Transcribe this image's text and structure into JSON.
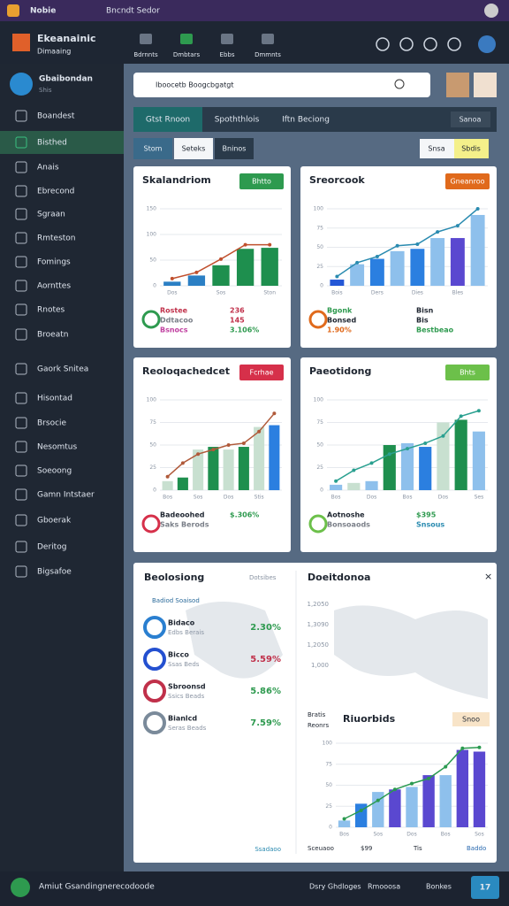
{
  "status_bar": {
    "app": "Nobie",
    "url": "Bncndt Sedor"
  },
  "header": {
    "brand": "Ekeanainic",
    "brand_sub": "Dimaaing",
    "tabs": [
      "Bdrnnts",
      "Dmbtars",
      "Ebbs",
      "Dmmnts"
    ]
  },
  "sidebar": {
    "profile_name": "Gbaibondan",
    "profile_sub": "Shis",
    "items": [
      "Boandest",
      "Bisthed",
      "Anais",
      "Ebrecond",
      "Sgraan",
      "Rmteston",
      "Fomings",
      "Aornttes",
      "Rnotes",
      "Broeatn",
      "Gaork Snitea",
      "Hisontad",
      "Brsocie",
      "Nesomtus",
      "Soeoong",
      "Gamn Intstaer",
      "Gboerak",
      "Deritog",
      "Bigsafoe"
    ],
    "selected": 1
  },
  "search": {
    "placeholder": "Iboocetb Boogcbgatgt"
  },
  "view_tabs": {
    "items": [
      "Gtst Rnoon",
      "Spoththlois",
      "Iftn Beciong"
    ],
    "right": "Sanoa"
  },
  "chips": {
    "items": [
      "Stom",
      "Seteks",
      "Bninos"
    ],
    "right": [
      "Snsa",
      "Sbdis"
    ]
  },
  "panels": [
    {
      "title": "Skalandriom",
      "badge": "Bhtto",
      "badge_color": "#2e9a4f",
      "chart": {
        "ylim": [
          0,
          150
        ],
        "yticks": [
          0,
          50,
          100,
          150
        ],
        "categories": [
          "Dos",
          null,
          "Sos",
          null,
          "Ston"
        ],
        "values": [
          8,
          20,
          40,
          72,
          74
        ],
        "colors": [
          "#2b7fc4",
          "#2b7fc4",
          "#1e8f4e",
          "#1e8f4e",
          "#1e8f4e"
        ],
        "line": [
          14,
          26,
          52,
          80,
          80
        ],
        "line_color": "#c0502e"
      },
      "stats": [
        {
          "text": "Rostee",
          "color": "#c0304a"
        },
        {
          "text": "236",
          "color": "#c0304a"
        },
        {
          "text": "Ddtacoo",
          "color": "#7a7f88"
        },
        {
          "text": "145",
          "color": "#c0304a"
        },
        {
          "text": "Bsnocs",
          "color": "#c040a0"
        },
        {
          "text": "3.106%",
          "color": "#2e9a4f"
        }
      ]
    },
    {
      "title": "Sreorcook",
      "badge": "Gneanroo",
      "badge_color": "#e06a1c",
      "chart": {
        "ylim": [
          0,
          100
        ],
        "yticks": [
          0,
          25,
          50,
          75,
          100
        ],
        "categories": [
          "Bois",
          null,
          "Ders",
          null,
          "Dies",
          null,
          "Bles",
          null
        ],
        "values": [
          8,
          28,
          35,
          45,
          48,
          62,
          62,
          92
        ],
        "colors": [
          "#2457d6",
          "#8ec0ec",
          "#2b7fe0",
          "#8ec0ec",
          "#2b7fe0",
          "#8ec0ec",
          "#5a48d0",
          "#8ec0ec"
        ],
        "line": [
          12,
          30,
          38,
          52,
          54,
          70,
          78,
          100
        ],
        "line_color": "#2a8bb0"
      },
      "stats": [
        {
          "text": "Bgonk",
          "color": "#2e9a4f"
        },
        {
          "text": "Bisn",
          "color": "#1e2530"
        },
        {
          "text": "Bonsed",
          "color": "#1e2530"
        },
        {
          "text": "Bis",
          "color": "#1e2530"
        },
        {
          "text": "1.90%",
          "color": "#e06a1c"
        },
        {
          "text": "Bestbeao",
          "color": "#2e9a4f"
        }
      ]
    },
    {
      "title": "Reoloqachedcet",
      "badge": "Fcrhae",
      "badge_color": "#d6304a",
      "chart": {
        "ylim": [
          0,
          100
        ],
        "yticks": [
          0,
          25,
          50,
          75,
          100
        ],
        "categories": [
          "Bos",
          null,
          "Sos",
          null,
          "Dos",
          null,
          "Stis",
          null
        ],
        "values": [
          10,
          14,
          45,
          48,
          45,
          48,
          70,
          72
        ],
        "colors": [
          "#c8e0d0",
          "#1e8f4e",
          "#c8e0d0",
          "#1e8f4e",
          "#c8e0d0",
          "#1e8f4e",
          "#c8e0d0",
          "#2b7fe0"
        ],
        "line": [
          15,
          30,
          40,
          45,
          50,
          52,
          65,
          85
        ],
        "line_color": "#b05a3a"
      },
      "stats": [
        {
          "text": "Badeoohed",
          "color": "#1e2530"
        },
        {
          "text": "$.306%",
          "color": "#2e9a4f"
        },
        {
          "text": "Saks Berods",
          "color": "#7a7f88"
        }
      ]
    },
    {
      "title": "Paeotidong",
      "badge": "Bhts",
      "badge_color": "#6cc04a",
      "chart": {
        "ylim": [
          0,
          100
        ],
        "yticks": [
          0,
          25,
          50,
          75,
          100
        ],
        "categories": [
          "Bos",
          null,
          "Dos",
          null,
          "Bos",
          null,
          "Dos",
          null,
          "Ses"
        ],
        "values": [
          6,
          8,
          10,
          50,
          52,
          48,
          75,
          78,
          65
        ],
        "colors": [
          "#8ec0ec",
          "#c8e0d0",
          "#8ec0ec",
          "#1e8f4e",
          "#8ec0ec",
          "#2b7fe0",
          "#c8e0d0",
          "#1e8f4e",
          "#8ec0ec"
        ],
        "line": [
          10,
          22,
          30,
          40,
          46,
          52,
          60,
          82,
          88
        ],
        "line_color": "#2aa090"
      },
      "stats": [
        {
          "text": "Aotnoshe",
          "color": "#1e2530"
        },
        {
          "text": "$395",
          "color": "#2e9a4f"
        },
        {
          "text": "Bonsoaods",
          "color": "#7a7f88"
        },
        {
          "text": "Snsous",
          "color": "#2a8bb0"
        }
      ]
    }
  ],
  "regions": {
    "title": "Beolosiong",
    "right": "Dotsibes",
    "legend": "Badiod Soaisod",
    "items": [
      {
        "name": "Bidaco",
        "sub": "Edbs Berais",
        "value": "2.30%",
        "color": "#2e9a4f",
        "icon": "#2a7fd0"
      },
      {
        "name": "Bicco",
        "sub": "Ssas Beds",
        "value": "5.59%",
        "color": "#c0304a",
        "icon": "#2450d0"
      },
      {
        "name": "Sbroonsd",
        "sub": "Ssics Beads",
        "value": "5.86%",
        "color": "#2e9a4f",
        "icon": "#c0304a"
      },
      {
        "name": "Bianlcd",
        "sub": "Seras Beads",
        "value": "7.59%",
        "color": "#2e9a4f",
        "icon": "#7a8a9a"
      }
    ],
    "footer": "Ssadaoo"
  },
  "map": {
    "title": "Doeitdonoa",
    "scale": [
      "1,2050",
      "1,3090",
      "1,2050",
      "1,000"
    ]
  },
  "trend": {
    "title": "Riuorbids",
    "side": [
      "Bratis",
      "Reonrs"
    ],
    "badge": "Snoo",
    "chart": {
      "ylim": [
        0,
        100
      ],
      "yticks": [
        0,
        25,
        50,
        75,
        100
      ],
      "categories": [
        "Bos",
        null,
        "Sos",
        null,
        "Dos",
        null,
        "Bos",
        null,
        "Sos"
      ],
      "values": [
        8,
        28,
        42,
        45,
        48,
        62,
        62,
        92,
        90
      ],
      "colors": [
        "#8ec0ec",
        "#2b7fe0",
        "#8ec0ec",
        "#5a48d0",
        "#8ec0ec",
        "#5a48d0",
        "#8ec0ec",
        "#5a48d0",
        "#5a48d0"
      ],
      "line": [
        10,
        20,
        32,
        45,
        52,
        58,
        72,
        94,
        95
      ],
      "line_color": "#2a9a50"
    },
    "footer": [
      "Sceuaoo",
      "$99",
      "Tis",
      "Baddo"
    ]
  },
  "bottom_bar": {
    "label": "Amiut Gsandingnerecodoode",
    "links": [
      "Dsry Ghdloges",
      "Rmooosa",
      "Bonkes"
    ],
    "button": "17"
  }
}
